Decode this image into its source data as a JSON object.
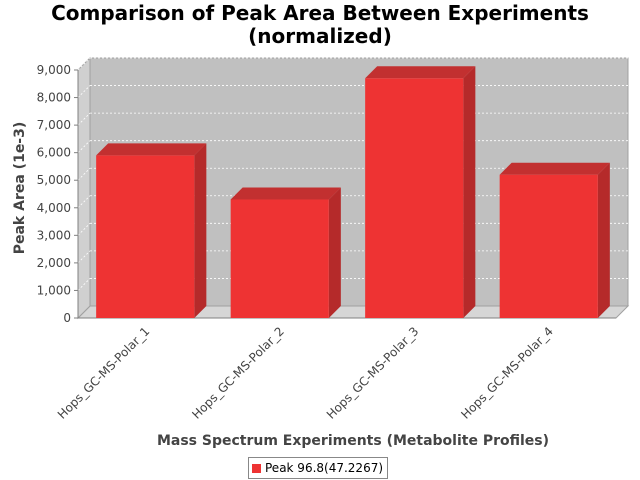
{
  "chart_data": {
    "type": "bar",
    "title_lines": [
      "Comparison of Peak Area Between Experiments",
      "(normalized)"
    ],
    "xlabel": "Mass Spectrum Experiments (Metabolite Profiles)",
    "ylabel": "Peak Area (1e-3)",
    "categories": [
      "Hops_GC-MS-Polar_1",
      "Hops_GC-MS-Polar_2",
      "Hops_GC-MS-Polar_3",
      "Hops_GC-MS-Polar_4"
    ],
    "series": [
      {
        "name": "Peak 96.8(47.2267)",
        "values": [
          5900,
          4300,
          8700,
          5200
        ],
        "color": "#ee3333"
      }
    ],
    "ylim": [
      0,
      9000
    ],
    "yticks": [
      0,
      1000,
      2000,
      3000,
      4000,
      5000,
      6000,
      7000,
      8000,
      9000
    ],
    "ytick_labels": [
      "0",
      "1,000",
      "2,000",
      "3,000",
      "4,000",
      "5,000",
      "6,000",
      "7,000",
      "8,000",
      "9,000"
    ],
    "grid": true,
    "legend_position": "bottom-center",
    "plot_background": "#c0c0c0"
  }
}
